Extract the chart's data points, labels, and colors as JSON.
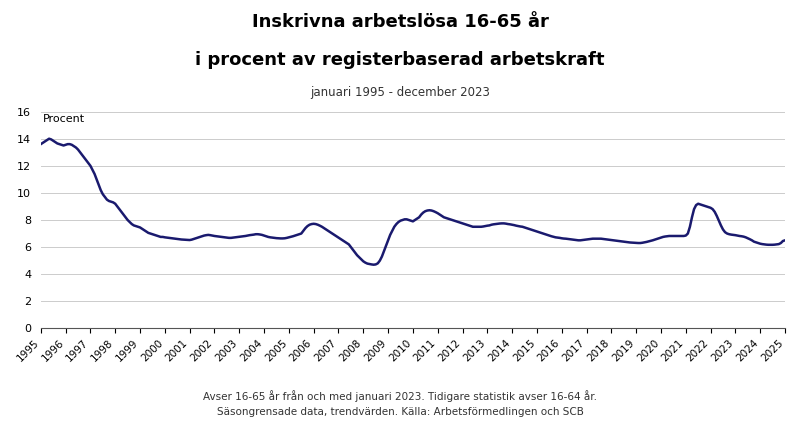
{
  "title_line1": "Inskrivna arbetslösa 16-65 år",
  "title_line2": "i procent av registerbaserad arbetskraft",
  "subtitle": "januari 1995 - december 2023",
  "ylabel": "Procent",
  "footnote1": "Avser 16-65 år från och med januari 2023. Tidigare statistik avser 16-64 år.",
  "footnote2": "Säsongrensade data, trendvärden. Källa: Arbetsförmedlingen och SCB",
  "line_color": "#1a1a6e",
  "line_width": 1.8,
  "xlim": [
    1995.0,
    2025.0
  ],
  "ylim": [
    0,
    16
  ],
  "yticks": [
    0,
    2,
    4,
    6,
    8,
    10,
    12,
    14,
    16
  ],
  "xticks": [
    1995,
    1996,
    1997,
    1998,
    1999,
    2000,
    2001,
    2002,
    2003,
    2004,
    2005,
    2006,
    2007,
    2008,
    2009,
    2010,
    2011,
    2012,
    2013,
    2014,
    2015,
    2016,
    2017,
    2018,
    2019,
    2020,
    2021,
    2022,
    2023,
    2024,
    2025
  ],
  "data_y": [
    13.6,
    13.7,
    13.8,
    13.9,
    14.0,
    13.95,
    13.85,
    13.75,
    13.65,
    13.6,
    13.55,
    13.5,
    13.55,
    13.6,
    13.6,
    13.55,
    13.45,
    13.35,
    13.2,
    13.0,
    12.8,
    12.6,
    12.4,
    12.2,
    12.0,
    11.7,
    11.4,
    11.0,
    10.6,
    10.2,
    9.9,
    9.7,
    9.5,
    9.4,
    9.35,
    9.3,
    9.2,
    9.0,
    8.8,
    8.6,
    8.4,
    8.2,
    8.0,
    7.85,
    7.7,
    7.6,
    7.55,
    7.5,
    7.45,
    7.35,
    7.25,
    7.15,
    7.05,
    7.0,
    6.95,
    6.9,
    6.85,
    6.8,
    6.75,
    6.75,
    6.72,
    6.7,
    6.68,
    6.66,
    6.64,
    6.62,
    6.6,
    6.58,
    6.56,
    6.55,
    6.54,
    6.53,
    6.52,
    6.55,
    6.6,
    6.65,
    6.7,
    6.75,
    6.8,
    6.85,
    6.88,
    6.9,
    6.88,
    6.85,
    6.82,
    6.8,
    6.78,
    6.76,
    6.74,
    6.72,
    6.7,
    6.68,
    6.68,
    6.7,
    6.72,
    6.74,
    6.76,
    6.78,
    6.8,
    6.82,
    6.85,
    6.88,
    6.9,
    6.92,
    6.95,
    6.95,
    6.93,
    6.9,
    6.85,
    6.8,
    6.75,
    6.72,
    6.7,
    6.68,
    6.66,
    6.65,
    6.64,
    6.64,
    6.65,
    6.68,
    6.72,
    6.76,
    6.8,
    6.85,
    6.9,
    6.95,
    7.0,
    7.2,
    7.4,
    7.55,
    7.65,
    7.7,
    7.72,
    7.7,
    7.65,
    7.58,
    7.5,
    7.4,
    7.3,
    7.2,
    7.1,
    7.0,
    6.9,
    6.8,
    6.7,
    6.6,
    6.5,
    6.4,
    6.3,
    6.2,
    6.0,
    5.8,
    5.6,
    5.4,
    5.25,
    5.1,
    4.95,
    4.85,
    4.78,
    4.75,
    4.72,
    4.7,
    4.72,
    4.8,
    5.0,
    5.3,
    5.7,
    6.1,
    6.5,
    6.9,
    7.2,
    7.5,
    7.7,
    7.85,
    7.95,
    8.0,
    8.05,
    8.05,
    8.0,
    7.95,
    7.9,
    8.0,
    8.1,
    8.2,
    8.4,
    8.55,
    8.65,
    8.7,
    8.72,
    8.7,
    8.65,
    8.58,
    8.5,
    8.4,
    8.3,
    8.2,
    8.15,
    8.1,
    8.05,
    8.0,
    7.95,
    7.9,
    7.85,
    7.8,
    7.75,
    7.7,
    7.65,
    7.6,
    7.55,
    7.5,
    7.5,
    7.5,
    7.5,
    7.5,
    7.52,
    7.55,
    7.58,
    7.6,
    7.65,
    7.68,
    7.7,
    7.72,
    7.74,
    7.75,
    7.75,
    7.73,
    7.7,
    7.68,
    7.65,
    7.62,
    7.58,
    7.55,
    7.52,
    7.5,
    7.45,
    7.4,
    7.35,
    7.3,
    7.25,
    7.2,
    7.15,
    7.1,
    7.05,
    7.0,
    6.95,
    6.9,
    6.85,
    6.8,
    6.76,
    6.72,
    6.7,
    6.68,
    6.65,
    6.63,
    6.62,
    6.6,
    6.58,
    6.56,
    6.54,
    6.52,
    6.5,
    6.5,
    6.52,
    6.54,
    6.56,
    6.58,
    6.6,
    6.62,
    6.62,
    6.62,
    6.62,
    6.62,
    6.6,
    6.58,
    6.56,
    6.54,
    6.52,
    6.5,
    6.48,
    6.46,
    6.44,
    6.42,
    6.4,
    6.38,
    6.36,
    6.34,
    6.33,
    6.32,
    6.31,
    6.3,
    6.3,
    6.32,
    6.35,
    6.38,
    6.42,
    6.46,
    6.5,
    6.55,
    6.6,
    6.65,
    6.7,
    6.75,
    6.78,
    6.8,
    6.82,
    6.82,
    6.82,
    6.82,
    6.82,
    6.82,
    6.82,
    6.82,
    6.85,
    7.0,
    7.5,
    8.2,
    8.8,
    9.1,
    9.2,
    9.15,
    9.1,
    9.05,
    9.0,
    8.95,
    8.9,
    8.8,
    8.6,
    8.3,
    7.95,
    7.6,
    7.3,
    7.1,
    7.0,
    6.95,
    6.92,
    6.9,
    6.88,
    6.85,
    6.82,
    6.8,
    6.77,
    6.72,
    6.65,
    6.58,
    6.5,
    6.4,
    6.35,
    6.3,
    6.25,
    6.22,
    6.2,
    6.18,
    6.17,
    6.17,
    6.17,
    6.18,
    6.2,
    6.22,
    6.3,
    6.45,
    6.5,
    6.52,
    6.54,
    6.56,
    6.57,
    6.58,
    6.6,
    6.62,
    6.62,
    6.6,
    6.58,
    6.56
  ]
}
